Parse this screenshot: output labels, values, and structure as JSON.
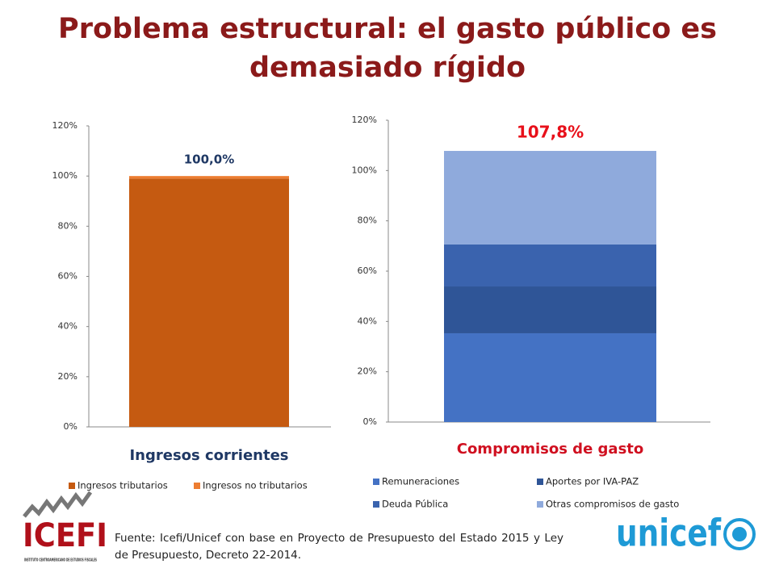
{
  "title": "Problema estructural: el gasto público es demasiado rígido",
  "chart_data": [
    {
      "type": "stacked_bar",
      "categories": [
        "Ingresos corrientes"
      ],
      "series": [
        {
          "name": "Ingresos tributarios",
          "color": "#c55a11",
          "values": [
            99
          ]
        },
        {
          "name": "Ingresos no tributarios",
          "color": "#ed7d31",
          "values": [
            1
          ]
        }
      ],
      "totals": [
        100
      ],
      "total_labels": [
        "100,0%"
      ],
      "ylim": [
        0,
        120
      ],
      "yticks": [
        {
          "value": 0,
          "label": "0%"
        },
        {
          "value": 20,
          "label": "20%"
        },
        {
          "value": 40,
          "label": "40%"
        },
        {
          "value": 60,
          "label": "60%"
        },
        {
          "value": 80,
          "label": "80%"
        },
        {
          "value": 100,
          "label": "100%"
        },
        {
          "value": 120,
          "label": "120%"
        }
      ],
      "legend": "bottom"
    },
    {
      "type": "stacked_bar",
      "categories": [
        "Compromisos de gasto"
      ],
      "series": [
        {
          "name": "Remuneraciones",
          "color": "#4472c4",
          "values": [
            35.3
          ]
        },
        {
          "name": "Aportes por IVA-PAZ",
          "color": "#2f5597",
          "values": [
            18.6
          ]
        },
        {
          "name": "Deuda Pública",
          "color": "#3a63ae",
          "values": [
            16.7
          ]
        },
        {
          "name": "Otras compromisos de gasto",
          "color": "#8faadc",
          "values": [
            37.2
          ]
        }
      ],
      "totals": [
        107.8
      ],
      "total_labels": [
        "107,8%"
      ],
      "ylim": [
        0,
        120
      ],
      "yticks": [
        {
          "value": 0,
          "label": "0%"
        },
        {
          "value": 20,
          "label": "20%"
        },
        {
          "value": 40,
          "label": "40%"
        },
        {
          "value": 60,
          "label": "60%"
        },
        {
          "value": 80,
          "label": "80%"
        },
        {
          "value": 100,
          "label": "100%"
        },
        {
          "value": 120,
          "label": "120%"
        }
      ],
      "legend": "bottom"
    }
  ],
  "source": "Fuente: Icefi/Unicef con base en Proyecto de Presupuesto del Estado 2015 y Ley de Presupuesto, Decreto 22-2014.",
  "logos": {
    "icefi": "ICEFI",
    "icefi_subtitle": "INSTITUTO CENTROAMERICANO DE ESTUDIOS FISCALES",
    "unicef": "unicef"
  }
}
